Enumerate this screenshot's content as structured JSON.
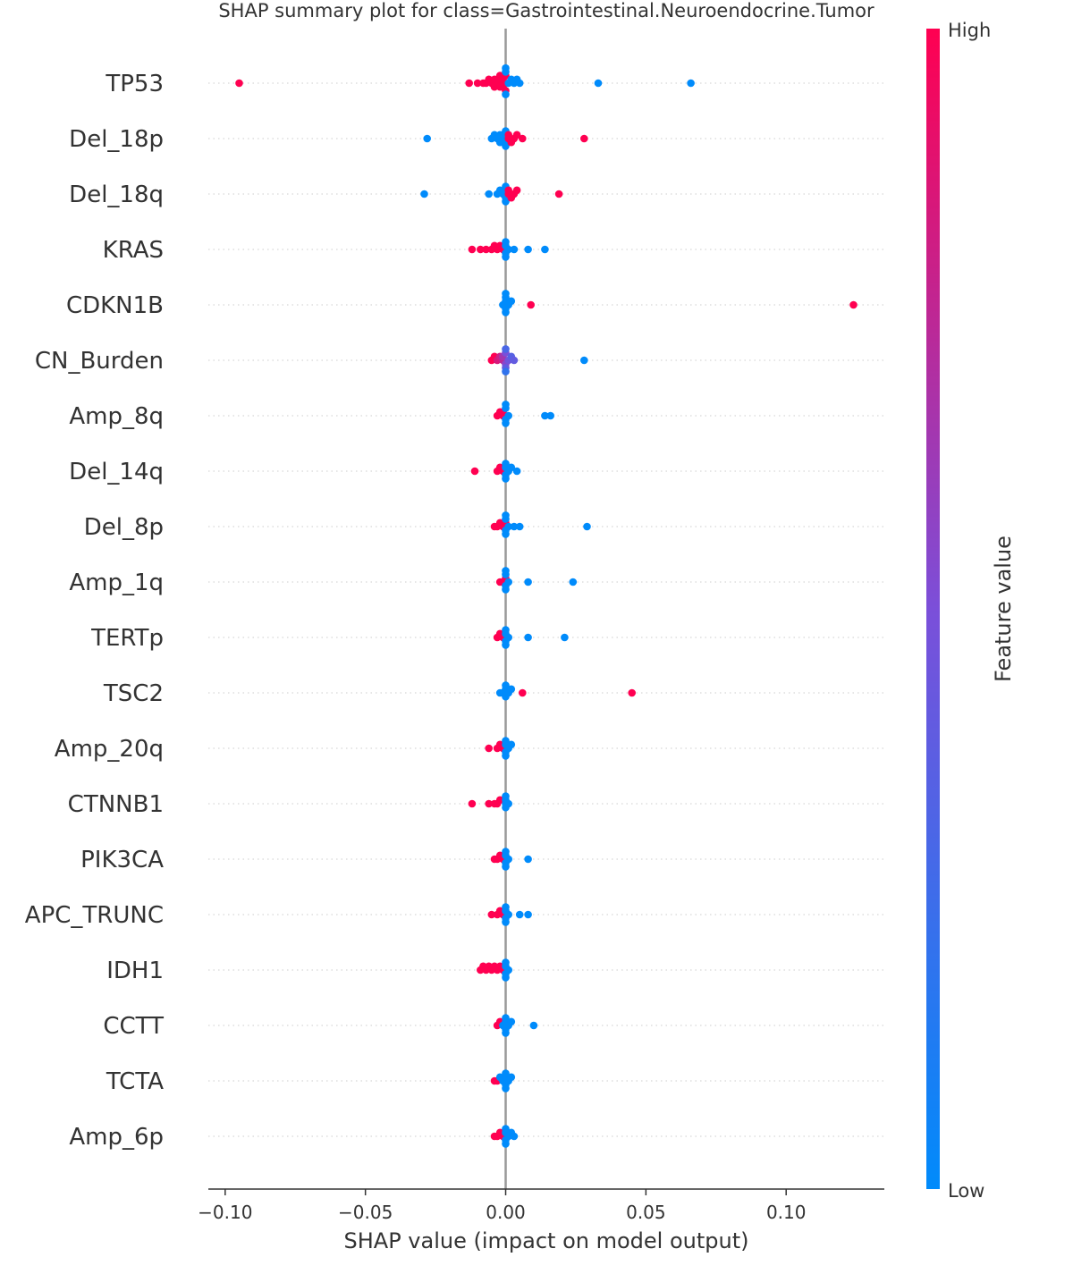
{
  "chart_data": {
    "type": "scatter",
    "subtype": "shap-beeswarm",
    "title": "SHAP summary plot for class=Gastrointestinal.Neuroendocrine.Tumor",
    "xlabel": "SHAP value (impact on model output)",
    "ylabel": "",
    "xlim": [
      -0.106,
      0.135
    ],
    "xticks": [
      -0.1,
      -0.05,
      0.0,
      0.05,
      0.1
    ],
    "xtick_labels": [
      "−0.10",
      "−0.05",
      "0.00",
      "0.05",
      "0.10"
    ],
    "grid": false,
    "colorbar": {
      "label": "Feature value",
      "high_label": "High",
      "low_label": "Low",
      "high_color": "#ff0051",
      "mid_color": "#7b4fd9",
      "low_color": "#008bfb"
    },
    "features": [
      {
        "name": "TP53",
        "points": [
          [
            -0.095,
            1
          ],
          [
            -0.013,
            1
          ],
          [
            -0.01,
            1
          ],
          [
            -0.008,
            1
          ],
          [
            -0.007,
            1
          ],
          [
            -0.006,
            1
          ],
          [
            -0.005,
            1
          ],
          [
            -0.004,
            1
          ],
          [
            -0.004,
            1
          ],
          [
            -0.003,
            1
          ],
          [
            -0.003,
            1
          ],
          [
            -0.002,
            1
          ],
          [
            -0.002,
            1
          ],
          [
            -0.001,
            1
          ],
          [
            -0.001,
            1
          ],
          [
            -0.001,
            1
          ],
          [
            0.0,
            1
          ],
          [
            0.0,
            1
          ],
          [
            0.0,
            0
          ],
          [
            0.0,
            0
          ],
          [
            0.0,
            0
          ],
          [
            0.001,
            0
          ],
          [
            0.002,
            0
          ],
          [
            0.003,
            0
          ],
          [
            0.004,
            0
          ],
          [
            0.005,
            0
          ],
          [
            0.033,
            0
          ],
          [
            0.066,
            0
          ]
        ]
      },
      {
        "name": "Del_18p",
        "points": [
          [
            -0.028,
            0
          ],
          [
            -0.005,
            0
          ],
          [
            -0.004,
            0
          ],
          [
            -0.003,
            0
          ],
          [
            -0.002,
            0
          ],
          [
            -0.002,
            0
          ],
          [
            -0.001,
            0
          ],
          [
            -0.001,
            0
          ],
          [
            0.0,
            0
          ],
          [
            0.0,
            0
          ],
          [
            0.0,
            0
          ],
          [
            0.001,
            1
          ],
          [
            0.001,
            1
          ],
          [
            0.002,
            1
          ],
          [
            0.003,
            1
          ],
          [
            0.004,
            1
          ],
          [
            0.006,
            1
          ],
          [
            0.028,
            1
          ]
        ]
      },
      {
        "name": "Del_18q",
        "points": [
          [
            -0.029,
            0
          ],
          [
            -0.006,
            0
          ],
          [
            -0.003,
            0
          ],
          [
            -0.002,
            0
          ],
          [
            -0.001,
            0
          ],
          [
            0.0,
            0
          ],
          [
            0.0,
            0
          ],
          [
            0.0,
            0
          ],
          [
            0.0,
            0
          ],
          [
            0.001,
            1
          ],
          [
            0.001,
            1
          ],
          [
            0.002,
            1
          ],
          [
            0.003,
            1
          ],
          [
            0.004,
            1
          ],
          [
            0.019,
            1
          ]
        ]
      },
      {
        "name": "KRAS",
        "points": [
          [
            -0.012,
            1
          ],
          [
            -0.009,
            1
          ],
          [
            -0.007,
            1
          ],
          [
            -0.005,
            1
          ],
          [
            -0.004,
            1
          ],
          [
            -0.003,
            1
          ],
          [
            -0.002,
            1
          ],
          [
            -0.001,
            1
          ],
          [
            0.0,
            0
          ],
          [
            0.0,
            0
          ],
          [
            0.0,
            0
          ],
          [
            0.0,
            0
          ],
          [
            0.001,
            0
          ],
          [
            0.003,
            0
          ],
          [
            0.008,
            0
          ],
          [
            0.014,
            0
          ]
        ]
      },
      {
        "name": "CDKN1B",
        "points": [
          [
            -0.001,
            0
          ],
          [
            0.0,
            0
          ],
          [
            0.0,
            0
          ],
          [
            0.0,
            0
          ],
          [
            0.0,
            0
          ],
          [
            0.0,
            0
          ],
          [
            0.001,
            0
          ],
          [
            0.002,
            0
          ],
          [
            0.009,
            1
          ],
          [
            0.124,
            1
          ]
        ]
      },
      {
        "name": "CN_Burden",
        "points": [
          [
            -0.005,
            1
          ],
          [
            -0.004,
            1
          ],
          [
            -0.003,
            0.85
          ],
          [
            -0.002,
            0.8
          ],
          [
            -0.001,
            0.75
          ],
          [
            -0.001,
            0.65
          ],
          [
            0.0,
            0.55
          ],
          [
            0.0,
            0.5
          ],
          [
            0.0,
            0.4
          ],
          [
            0.0,
            0.3
          ],
          [
            0.0,
            0.2
          ],
          [
            0.001,
            0.45
          ],
          [
            0.002,
            0.35
          ],
          [
            0.003,
            0.4
          ],
          [
            0.028,
            0
          ]
        ]
      },
      {
        "name": "Amp_8q",
        "points": [
          [
            -0.003,
            1
          ],
          [
            -0.002,
            1
          ],
          [
            -0.001,
            1
          ],
          [
            -0.001,
            1
          ],
          [
            0.0,
            0
          ],
          [
            0.0,
            0
          ],
          [
            0.0,
            0
          ],
          [
            0.0,
            0
          ],
          [
            0.001,
            0
          ],
          [
            0.014,
            0
          ],
          [
            0.016,
            0
          ]
        ]
      },
      {
        "name": "Del_14q",
        "points": [
          [
            -0.011,
            1
          ],
          [
            -0.003,
            1
          ],
          [
            -0.002,
            1
          ],
          [
            -0.001,
            1
          ],
          [
            0.0,
            0
          ],
          [
            0.0,
            0
          ],
          [
            0.0,
            0
          ],
          [
            0.0,
            0
          ],
          [
            0.001,
            0
          ],
          [
            0.002,
            0
          ],
          [
            0.004,
            0
          ]
        ]
      },
      {
        "name": "Del_8p",
        "points": [
          [
            -0.004,
            1
          ],
          [
            -0.003,
            1
          ],
          [
            -0.002,
            1
          ],
          [
            -0.001,
            1
          ],
          [
            0.0,
            1
          ],
          [
            0.0,
            0
          ],
          [
            0.0,
            0
          ],
          [
            0.0,
            0
          ],
          [
            0.0,
            0
          ],
          [
            0.001,
            0
          ],
          [
            0.003,
            0
          ],
          [
            0.005,
            0
          ],
          [
            0.029,
            0
          ]
        ]
      },
      {
        "name": "Amp_1q",
        "points": [
          [
            -0.002,
            1
          ],
          [
            -0.001,
            1
          ],
          [
            0.0,
            1
          ],
          [
            0.0,
            0
          ],
          [
            0.0,
            0
          ],
          [
            0.0,
            0
          ],
          [
            0.0,
            0
          ],
          [
            0.001,
            0
          ],
          [
            0.008,
            0
          ],
          [
            0.024,
            0
          ]
        ]
      },
      {
        "name": "TERTp",
        "points": [
          [
            -0.003,
            1
          ],
          [
            -0.002,
            1
          ],
          [
            -0.001,
            1
          ],
          [
            0.0,
            0
          ],
          [
            0.0,
            0
          ],
          [
            0.0,
            0
          ],
          [
            0.0,
            0
          ],
          [
            0.001,
            0
          ],
          [
            0.008,
            0
          ],
          [
            0.021,
            0
          ]
        ]
      },
      {
        "name": "TSC2",
        "points": [
          [
            -0.002,
            0
          ],
          [
            -0.001,
            0
          ],
          [
            0.0,
            0
          ],
          [
            0.0,
            0
          ],
          [
            0.0,
            0
          ],
          [
            0.001,
            0
          ],
          [
            0.002,
            0
          ],
          [
            0.006,
            1
          ],
          [
            0.045,
            1
          ]
        ]
      },
      {
        "name": "Amp_20q",
        "points": [
          [
            -0.006,
            1
          ],
          [
            -0.003,
            1
          ],
          [
            -0.002,
            1
          ],
          [
            -0.001,
            1
          ],
          [
            0.0,
            0
          ],
          [
            0.0,
            0
          ],
          [
            0.0,
            0
          ],
          [
            0.0,
            0
          ],
          [
            0.001,
            0
          ],
          [
            0.002,
            0
          ]
        ]
      },
      {
        "name": "CTNNB1",
        "points": [
          [
            -0.012,
            1
          ],
          [
            -0.006,
            1
          ],
          [
            -0.004,
            1
          ],
          [
            -0.003,
            1
          ],
          [
            -0.002,
            1
          ],
          [
            0.0,
            0
          ],
          [
            0.0,
            0
          ],
          [
            0.0,
            0
          ],
          [
            0.0,
            0
          ],
          [
            0.001,
            0
          ]
        ]
      },
      {
        "name": "PIK3CA",
        "points": [
          [
            -0.004,
            1
          ],
          [
            -0.003,
            1
          ],
          [
            -0.002,
            1
          ],
          [
            -0.001,
            1
          ],
          [
            0.0,
            0
          ],
          [
            0.0,
            0
          ],
          [
            0.0,
            0
          ],
          [
            0.0,
            0
          ],
          [
            0.001,
            0
          ],
          [
            0.008,
            0
          ]
        ]
      },
      {
        "name": "APC_TRUNC",
        "points": [
          [
            -0.005,
            1
          ],
          [
            -0.003,
            1
          ],
          [
            -0.002,
            1
          ],
          [
            -0.001,
            1
          ],
          [
            0.0,
            0
          ],
          [
            0.0,
            0
          ],
          [
            0.0,
            0
          ],
          [
            0.0,
            0
          ],
          [
            0.001,
            0
          ],
          [
            0.005,
            0
          ],
          [
            0.008,
            0
          ]
        ]
      },
      {
        "name": "IDH1",
        "points": [
          [
            -0.009,
            1
          ],
          [
            -0.008,
            1
          ],
          [
            -0.007,
            1
          ],
          [
            -0.006,
            1
          ],
          [
            -0.005,
            1
          ],
          [
            -0.004,
            1
          ],
          [
            -0.003,
            1
          ],
          [
            -0.002,
            1
          ],
          [
            -0.001,
            1
          ],
          [
            0.0,
            0
          ],
          [
            0.0,
            0
          ],
          [
            0.0,
            0
          ],
          [
            0.0,
            0
          ],
          [
            0.001,
            0
          ]
        ]
      },
      {
        "name": "CCTT",
        "points": [
          [
            -0.003,
            1
          ],
          [
            -0.002,
            1
          ],
          [
            -0.001,
            0
          ],
          [
            0.0,
            0
          ],
          [
            0.0,
            0
          ],
          [
            0.0,
            0
          ],
          [
            0.0,
            0
          ],
          [
            0.001,
            0
          ],
          [
            0.002,
            0
          ],
          [
            0.01,
            0
          ]
        ]
      },
      {
        "name": "TCTA",
        "points": [
          [
            -0.004,
            1
          ],
          [
            -0.003,
            1
          ],
          [
            -0.002,
            0
          ],
          [
            -0.001,
            0
          ],
          [
            0.0,
            0
          ],
          [
            0.0,
            0
          ],
          [
            0.0,
            0
          ],
          [
            0.0,
            0
          ],
          [
            0.001,
            0
          ],
          [
            0.002,
            0
          ]
        ]
      },
      {
        "name": "Amp_6p",
        "points": [
          [
            -0.004,
            1
          ],
          [
            -0.003,
            1
          ],
          [
            -0.002,
            1
          ],
          [
            -0.001,
            1
          ],
          [
            0.0,
            0
          ],
          [
            0.0,
            0
          ],
          [
            0.0,
            0
          ],
          [
            0.0,
            0
          ],
          [
            0.001,
            0
          ],
          [
            0.002,
            0
          ],
          [
            0.003,
            0
          ]
        ]
      }
    ]
  }
}
